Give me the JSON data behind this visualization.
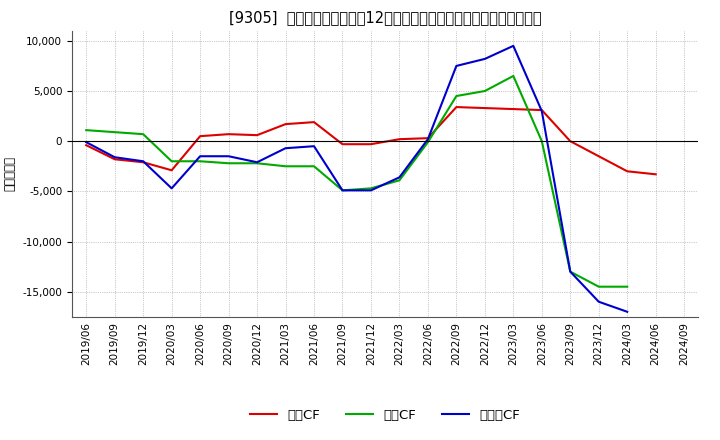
{
  "title": "[9305]  キャッシュフローの12か月移動合計の対前年同期増減額の推移",
  "ylabel": "（百万円）",
  "background_color": "#ffffff",
  "plot_bg_color": "#ffffff",
  "grid_color": "#999999",
  "title_fontsize": 10.5,
  "label_fontsize": 8.5,
  "tick_fontsize": 7.5,
  "dates": [
    "2019/06",
    "2019/09",
    "2019/12",
    "2020/03",
    "2020/06",
    "2020/09",
    "2020/12",
    "2021/03",
    "2021/06",
    "2021/09",
    "2021/12",
    "2022/03",
    "2022/06",
    "2022/09",
    "2022/12",
    "2023/03",
    "2023/06",
    "2023/09",
    "2023/12",
    "2024/03",
    "2024/06",
    "2024/09"
  ],
  "operating_cf": [
    -400,
    -1800,
    -2100,
    -2900,
    500,
    700,
    600,
    1700,
    1900,
    -300,
    -300,
    200,
    300,
    3400,
    3300,
    3200,
    3100,
    0,
    -1500,
    -3000,
    -3300,
    null
  ],
  "investing_cf": [
    1100,
    900,
    700,
    -2000,
    -2000,
    -2200,
    -2200,
    -2500,
    -2500,
    -4900,
    -4700,
    -3900,
    -100,
    4500,
    5000,
    6500,
    0,
    -13000,
    -14500,
    -14500,
    null,
    null
  ],
  "free_cf": [
    -100,
    -1600,
    -2000,
    -4700,
    -1500,
    -1500,
    -2100,
    -700,
    -500,
    -4900,
    -4900,
    -3600,
    200,
    7500,
    8200,
    9500,
    3000,
    -13000,
    -16000,
    -17000,
    null,
    null
  ],
  "operating_color": "#dd0000",
  "investing_color": "#00aa00",
  "free_color": "#0000cc",
  "ylim": [
    -17500,
    11000
  ],
  "yticks": [
    -15000,
    -10000,
    -5000,
    0,
    5000,
    10000
  ],
  "legend_labels": [
    "営業CF",
    "投資CF",
    "フリーCF"
  ]
}
